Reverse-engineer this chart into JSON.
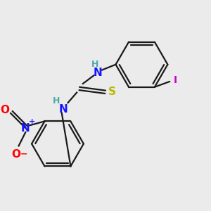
{
  "background_color": "#ebebeb",
  "bond_color": "#1a1a1a",
  "bond_width": 1.6,
  "atom_colors": {
    "N": "#1515ff",
    "H": "#4daaaa",
    "S": "#b8b800",
    "I": "#cc00cc",
    "O": "#ff0000",
    "C": "#1a1a1a"
  },
  "fig_size": [
    3.0,
    3.0
  ],
  "dpi": 100
}
